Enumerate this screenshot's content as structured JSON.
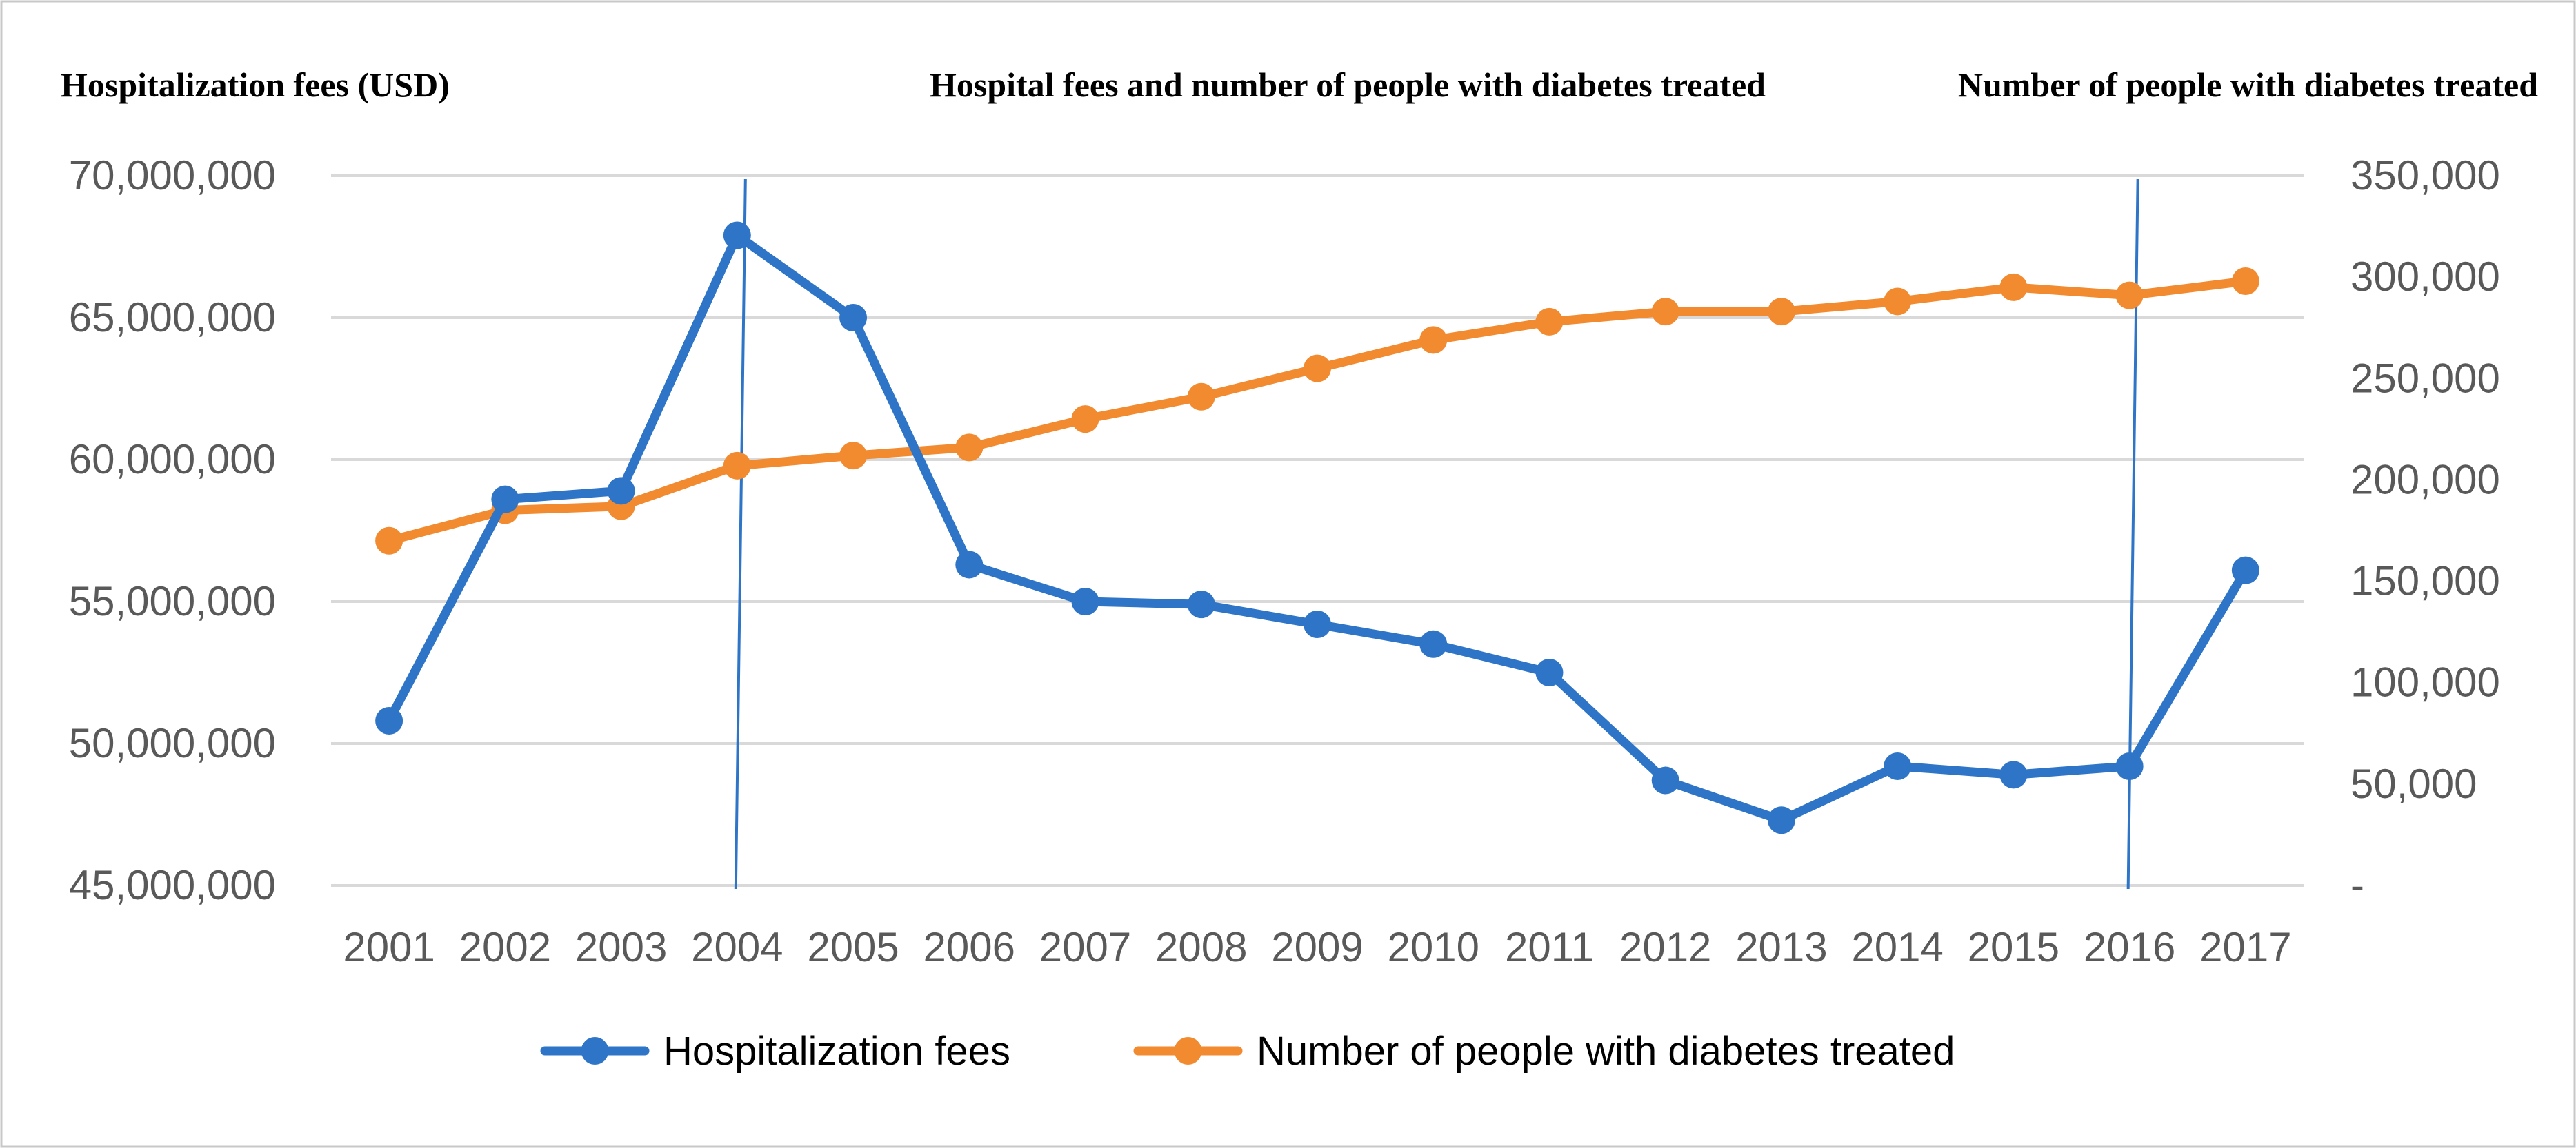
{
  "chart_data": {
    "type": "line",
    "title": "Hospital fees and number of people with diabetes treated",
    "ylabel": "Hospitalization fees (USD)",
    "y2label": "Number of people with diabetes treated",
    "xlabel": "",
    "categories": [
      "2001",
      "2002",
      "2003",
      "2004",
      "2005",
      "2006",
      "2007",
      "2008",
      "2009",
      "2010",
      "2011",
      "2012",
      "2013",
      "2014",
      "2015",
      "2016",
      "2017"
    ],
    "ylim": [
      45000000,
      70000000
    ],
    "y2lim": [
      0,
      350000
    ],
    "y_ticks": [
      {
        "value": 45000000,
        "label": "45,000,000"
      },
      {
        "value": 50000000,
        "label": "50,000,000"
      },
      {
        "value": 55000000,
        "label": "55,000,000"
      },
      {
        "value": 60000000,
        "label": "60,000,000"
      },
      {
        "value": 65000000,
        "label": "65,000,000"
      },
      {
        "value": 70000000,
        "label": "70,000,000"
      }
    ],
    "y2_ticks": [
      {
        "value": 0,
        "label": "-"
      },
      {
        "value": 50000,
        "label": "50,000"
      },
      {
        "value": 100000,
        "label": "100,000"
      },
      {
        "value": 150000,
        "label": "150,000"
      },
      {
        "value": 200000,
        "label": "200,000"
      },
      {
        "value": 250000,
        "label": "250,000"
      },
      {
        "value": 300000,
        "label": "300,000"
      },
      {
        "value": 350000,
        "label": "350,000"
      }
    ],
    "series": [
      {
        "name": "Hospitalization fees",
        "axis": "left",
        "color": "#2e75c8",
        "values": [
          50800000,
          58600000,
          58900000,
          67900000,
          65000000,
          56300000,
          55000000,
          54900000,
          54200000,
          53500000,
          52500000,
          48700000,
          47300000,
          49200000,
          48900000,
          49200000,
          56100000
        ]
      },
      {
        "name": "Number of people with diabetes treated",
        "axis": "right",
        "color": "#f28a2f",
        "values": [
          170000,
          185000,
          187000,
          207000,
          212000,
          216000,
          230000,
          241000,
          255000,
          269000,
          278000,
          283000,
          283000,
          288000,
          295000,
          291000,
          298000
        ]
      }
    ],
    "reference_lines": [
      "2004",
      "2016"
    ],
    "grid": true,
    "legend_position": "bottom"
  }
}
